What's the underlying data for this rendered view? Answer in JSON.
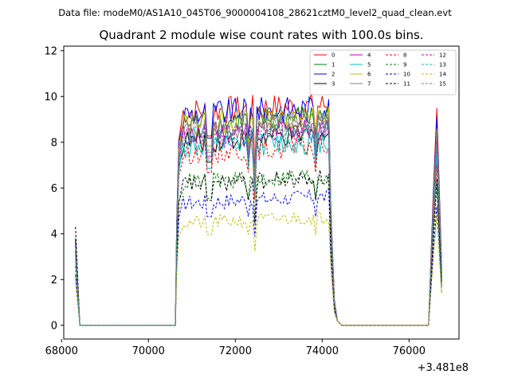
{
  "chart_data": {
    "type": "line",
    "file_label": "Data file: modeM0/AS1A10_045T06_9000004108_28621cztM0_level2_quad_clean.evt",
    "title": "Quadrant 2 module wise count rates with 100.0s bins.",
    "xlabel": "",
    "ylabel": "",
    "offset_label": "+3.481e8",
    "xlim": [
      68050,
      77150
    ],
    "ylim": [
      -0.6,
      12.2
    ],
    "xticks": [
      68000,
      70000,
      72000,
      74000,
      76000
    ],
    "xtick_labels": [
      "68000",
      "70000",
      "72000",
      "74000",
      "76000"
    ],
    "yticks": [
      0,
      2,
      4,
      6,
      8,
      10,
      12
    ],
    "ytick_labels": [
      "0",
      "2",
      "4",
      "6",
      "8",
      "10",
      "12"
    ],
    "legend_position": "top-right",
    "legend_columns": 4,
    "segments": {
      "segment_1": {
        "x_start": 68320,
        "x_end": 70620
      },
      "segment_2": {
        "x_start": 70650,
        "x_end": 74450
      },
      "segment_3": {
        "x_start": 76450,
        "x_end": 76750
      }
    },
    "series": [
      {
        "name": "0",
        "color": "#ff0000",
        "dash": "solid",
        "peak1": 3.8,
        "plateau": 9.4,
        "peak3": 9.5
      },
      {
        "name": "1",
        "color": "#008000",
        "dash": "solid",
        "peak1": 3.5,
        "plateau": 8.9,
        "peak3": 8.8
      },
      {
        "name": "2",
        "color": "#0000ff",
        "dash": "solid",
        "peak1": 3.7,
        "plateau": 9.3,
        "peak3": 9.1
      },
      {
        "name": "3",
        "color": "#000000",
        "dash": "solid",
        "peak1": 3.2,
        "plateau": 8.1,
        "peak3": 7.6
      },
      {
        "name": "4",
        "color": "#bf00bf",
        "dash": "solid",
        "peak1": 3.3,
        "plateau": 8.4,
        "peak3": 8.2
      },
      {
        "name": "5",
        "color": "#00bfbf",
        "dash": "solid",
        "peak1": 3.0,
        "plateau": 7.8,
        "peak3": 7.4
      },
      {
        "name": "6",
        "color": "#bfbf00",
        "dash": "solid",
        "peak1": 3.4,
        "plateau": 8.9,
        "peak3": 8.6
      },
      {
        "name": "7",
        "color": "#808080",
        "dash": "solid",
        "peak1": 3.3,
        "plateau": 8.6,
        "peak3": 8.3
      },
      {
        "name": "8",
        "color": "#ff0000",
        "dash": "dashed",
        "peak1": 3.0,
        "plateau": 7.6,
        "peak3": 7.0
      },
      {
        "name": "9",
        "color": "#008000",
        "dash": "dashed",
        "peak1": 2.6,
        "plateau": 6.3,
        "peak3": 6.1
      },
      {
        "name": "10",
        "color": "#0000ff",
        "dash": "dashed",
        "peak1": 2.2,
        "plateau": 5.4,
        "peak3": 5.2
      },
      {
        "name": "11",
        "color": "#000000",
        "dash": "dashed",
        "peak1": 4.3,
        "plateau": 6.2,
        "peak3": 6.4
      },
      {
        "name": "12",
        "color": "#bf00bf",
        "dash": "dashed",
        "peak1": 3.1,
        "plateau": 8.3,
        "peak3": 8.0
      },
      {
        "name": "13",
        "color": "#00bfbf",
        "dash": "dashed",
        "peak1": 3.2,
        "plateau": 8.2,
        "peak3": 7.8
      },
      {
        "name": "14",
        "color": "#bfbf00",
        "dash": "dashed",
        "peak1": 1.9,
        "plateau": 4.5,
        "peak3": 4.8
      },
      {
        "name": "15",
        "color": "#808080",
        "dash": "dashed",
        "peak1": 3.3,
        "plateau": 8.7,
        "peak3": 8.4
      }
    ]
  }
}
